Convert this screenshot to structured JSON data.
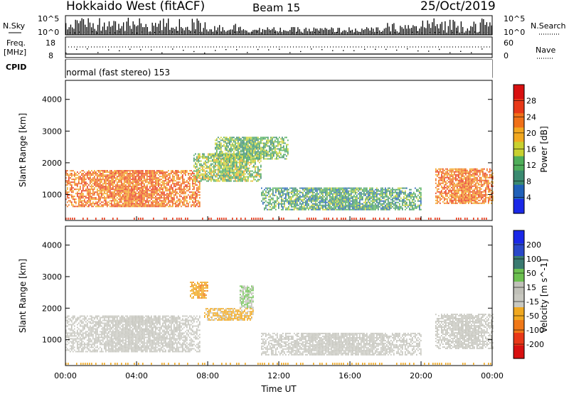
{
  "header": {
    "station": "Hokkaido West (fitACF)",
    "beam": "Beam 15",
    "date": "25/Oct/2019"
  },
  "noise_panel": {
    "left_label": "N.Sky",
    "right_label": "N.Search",
    "y_ticks": [
      "10^5",
      "10^0"
    ]
  },
  "freq_panel": {
    "left_label_line1": "Freq.",
    "left_label_line2": "[MHz]",
    "left_ticks": [
      "18",
      "8"
    ],
    "right_label": "Nave",
    "right_ticks": [
      "60",
      "0"
    ]
  },
  "cpid_panel": {
    "label": "CPID",
    "mode": "normal (fast stereo) 153"
  },
  "x_axis": {
    "label": "Time UT",
    "ticks": [
      "00:00",
      "04:00",
      "08:00",
      "12:00",
      "16:00",
      "20:00",
      "00:00"
    ]
  },
  "colors": {
    "power_scale": [
      "#1a28e8",
      "#2060b8",
      "#3a8a70",
      "#4fae5a",
      "#c8d030",
      "#f2a820",
      "#f07018",
      "#e83818",
      "#d81010"
    ],
    "velocity_scale": [
      "#1a28e8",
      "#2a48c8",
      "#3a7a70",
      "#6cc050",
      "#c0c0b8",
      "#c8c8c0",
      "#f0a820",
      "#f07818",
      "#e83818",
      "#d81010"
    ],
    "frame": "#000000",
    "background": "#ffffff"
  },
  "chart_data": [
    {
      "type": "heatmap",
      "title": "",
      "xlabel": "Time UT",
      "ylabel": "Slant Range [km]",
      "xlim": [
        "00:00",
        "24:00"
      ],
      "ylim": [
        180,
        4600
      ],
      "y_ticks": [
        "1000",
        "2000",
        "3000",
        "4000"
      ],
      "colorbar_label": "Power [dB]",
      "colorbar_ticks": [
        "4",
        "8",
        "12",
        "16",
        "20",
        "24",
        "28"
      ],
      "colorbar_range": [
        0,
        32
      ],
      "echo_regions": [
        {
          "t": [
            0.0,
            7.6
          ],
          "r": [
            600,
            1750
          ],
          "level": 24
        },
        {
          "t": [
            7.2,
            11.0
          ],
          "r": [
            1400,
            2300
          ],
          "level": 14
        },
        {
          "t": [
            8.4,
            12.5
          ],
          "r": [
            2100,
            2800
          ],
          "level": 12
        },
        {
          "t": [
            11.0,
            20.0
          ],
          "r": [
            500,
            1200
          ],
          "level": 10
        },
        {
          "t": [
            20.8,
            24.0
          ],
          "r": [
            700,
            1800
          ],
          "level": 24
        }
      ]
    },
    {
      "type": "heatmap",
      "title": "",
      "xlabel": "Time UT",
      "ylabel": "Slant Range [km]",
      "xlim": [
        "00:00",
        "24:00"
      ],
      "ylim": [
        180,
        4600
      ],
      "y_ticks": [
        "1000",
        "2000",
        "3000",
        "4000"
      ],
      "colorbar_label": "Velocity [m s^-1]",
      "colorbar_ticks": [
        "200",
        "100",
        "50",
        "15",
        "-15",
        "-50",
        "-100",
        "-200"
      ],
      "colorbar_range": [
        -250,
        250
      ],
      "echo_regions": [
        {
          "t": [
            0.0,
            7.6
          ],
          "r": [
            600,
            1750
          ],
          "velocity": 0
        },
        {
          "t": [
            7.0,
            8.0
          ],
          "r": [
            2300,
            2800
          ],
          "velocity": -90
        },
        {
          "t": [
            7.8,
            10.6
          ],
          "r": [
            1600,
            2000
          ],
          "velocity": -70
        },
        {
          "t": [
            9.8,
            10.6
          ],
          "r": [
            2000,
            2700
          ],
          "velocity": 60
        },
        {
          "t": [
            11.0,
            20.0
          ],
          "r": [
            500,
            1200
          ],
          "velocity": 5
        },
        {
          "t": [
            20.8,
            24.0
          ],
          "r": [
            700,
            1800
          ],
          "velocity": 0
        }
      ]
    }
  ]
}
